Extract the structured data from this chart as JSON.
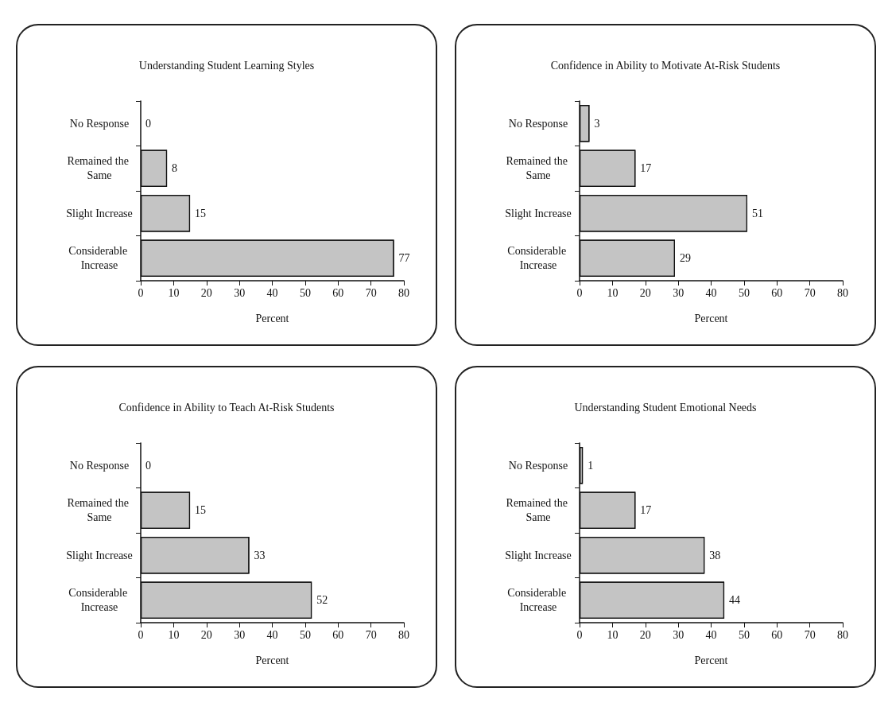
{
  "chart_data": [
    {
      "type": "bar",
      "orientation": "horizontal",
      "title": "Understanding Student Learning Styles",
      "xlabel": "Percent",
      "categories": [
        "No Response",
        "Remained the Same",
        "Slight Increase",
        "Considerable Increase"
      ],
      "values": [
        0,
        8,
        15,
        77
      ],
      "color": "#c4c4c4",
      "xlim": [
        0,
        80
      ],
      "xticks": [
        0,
        10,
        20,
        30,
        40,
        50,
        60,
        70,
        80
      ],
      "data_labels": true,
      "grid": false
    },
    {
      "type": "bar",
      "orientation": "horizontal",
      "title": "Confidence in Ability to Motivate At-Risk Students",
      "xlabel": "Percent",
      "categories": [
        "No Response",
        "Remained the Same",
        "Slight Increase",
        "Considerable Increase"
      ],
      "values": [
        3,
        17,
        51,
        29
      ],
      "color": "#c4c4c4",
      "xlim": [
        0,
        80
      ],
      "xticks": [
        0,
        10,
        20,
        30,
        40,
        50,
        60,
        70,
        80
      ],
      "data_labels": true,
      "grid": false
    },
    {
      "type": "bar",
      "orientation": "horizontal",
      "title": "Confidence in Ability to Teach At-Risk Students",
      "xlabel": "Percent",
      "categories": [
        "No Response",
        "Remained the Same",
        "Slight Increase",
        "Considerable Increase"
      ],
      "values": [
        0,
        15,
        33,
        52
      ],
      "color": "#c4c4c4",
      "xlim": [
        0,
        80
      ],
      "xticks": [
        0,
        10,
        20,
        30,
        40,
        50,
        60,
        70,
        80
      ],
      "data_labels": true,
      "grid": false
    },
    {
      "type": "bar",
      "orientation": "horizontal",
      "title": "Understanding Student Emotional Needs",
      "xlabel": "Percent",
      "categories": [
        "No Response",
        "Remained the Same",
        "Slight Increase",
        "Considerable Increase"
      ],
      "values": [
        1,
        17,
        38,
        44
      ],
      "color": "#c4c4c4",
      "xlim": [
        0,
        80
      ],
      "xticks": [
        0,
        10,
        20,
        30,
        40,
        50,
        60,
        70,
        80
      ],
      "data_labels": true,
      "grid": false
    }
  ]
}
